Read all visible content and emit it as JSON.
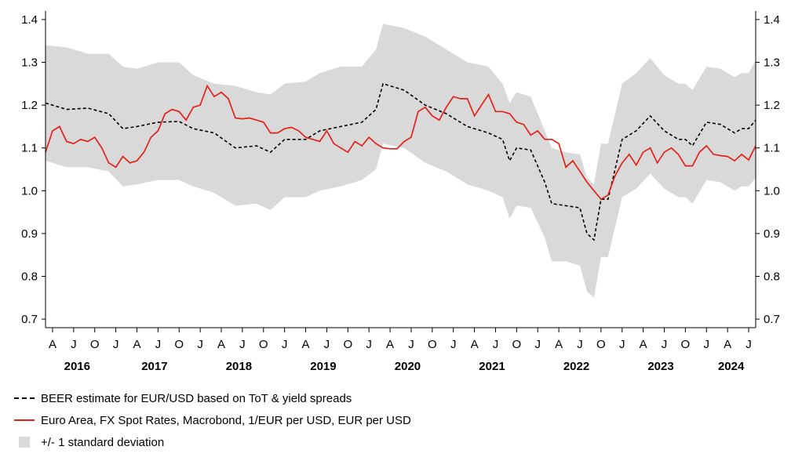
{
  "chart_data": {
    "type": "line",
    "x_axis": {
      "start": "2016-03",
      "end": "2024-08",
      "month_ticks": [
        "A",
        "J",
        "O",
        "J",
        "A",
        "J",
        "O",
        "J",
        "A",
        "J",
        "O",
        "J",
        "A",
        "J",
        "O",
        "J",
        "A",
        "J",
        "O",
        "J",
        "A",
        "J",
        "O",
        "J",
        "A",
        "J",
        "O",
        "J",
        "A",
        "J",
        "O",
        "J",
        "A",
        "J"
      ],
      "year_labels": [
        "2016",
        "2017",
        "2018",
        "2019",
        "2020",
        "2021",
        "2022",
        "2023",
        "2024"
      ]
    },
    "ylim": [
      0.68,
      1.42
    ],
    "y_ticks": [
      0.7,
      0.8,
      0.9,
      1.0,
      1.1,
      1.2,
      1.3,
      1.4
    ],
    "y_tick_labels": [
      "0.7",
      "0.8",
      "0.9",
      "1.0",
      "1.1",
      "1.2",
      "1.3",
      "1.4"
    ],
    "grid": false,
    "legend_position": "bottom",
    "series": [
      {
        "name": "BEER estimate for EUR/USD based on ToT & yield spreads",
        "style": "dashed",
        "color": "#000000",
        "points": [
          [
            "2016-03",
            1.205
          ],
          [
            "2016-06",
            1.19
          ],
          [
            "2016-09",
            1.193
          ],
          [
            "2016-12",
            1.18
          ],
          [
            "2017-02",
            1.145
          ],
          [
            "2017-04",
            1.15
          ],
          [
            "2017-07",
            1.16
          ],
          [
            "2017-10",
            1.162
          ],
          [
            "2017-12",
            1.145
          ],
          [
            "2018-03",
            1.135
          ],
          [
            "2018-06",
            1.1
          ],
          [
            "2018-09",
            1.105
          ],
          [
            "2018-11",
            1.09
          ],
          [
            "2019-01",
            1.12
          ],
          [
            "2019-04",
            1.12
          ],
          [
            "2019-06",
            1.14
          ],
          [
            "2019-09",
            1.15
          ],
          [
            "2019-12",
            1.16
          ],
          [
            "2020-02",
            1.19
          ],
          [
            "2020-03",
            1.25
          ],
          [
            "2020-06",
            1.235
          ],
          [
            "2020-09",
            1.2
          ],
          [
            "2020-12",
            1.18
          ],
          [
            "2021-03",
            1.15
          ],
          [
            "2021-06",
            1.135
          ],
          [
            "2021-08",
            1.12
          ],
          [
            "2021-09",
            1.07
          ],
          [
            "2021-10",
            1.1
          ],
          [
            "2021-12",
            1.095
          ],
          [
            "2022-02",
            1.02
          ],
          [
            "2022-03",
            0.97
          ],
          [
            "2022-05",
            0.965
          ],
          [
            "2022-07",
            0.96
          ],
          [
            "2022-08",
            0.9
          ],
          [
            "2022-09",
            0.885
          ],
          [
            "2022-10",
            0.98
          ],
          [
            "2022-11",
            0.98
          ],
          [
            "2023-01",
            1.12
          ],
          [
            "2023-03",
            1.14
          ],
          [
            "2023-05",
            1.175
          ],
          [
            "2023-07",
            1.14
          ],
          [
            "2023-09",
            1.12
          ],
          [
            "2023-10",
            1.12
          ],
          [
            "2023-11",
            1.105
          ],
          [
            "2024-01",
            1.16
          ],
          [
            "2024-03",
            1.155
          ],
          [
            "2024-05",
            1.135
          ],
          [
            "2024-06",
            1.145
          ],
          [
            "2024-07",
            1.145
          ],
          [
            "2024-08",
            1.165
          ]
        ]
      },
      {
        "name": "Euro Area, FX Spot Rates, Macrobond, 1/EUR per USD, EUR per USD",
        "style": "solid",
        "color": "#e32119",
        "points": [
          [
            "2016-03",
            1.09
          ],
          [
            "2016-04",
            1.14
          ],
          [
            "2016-05",
            1.15
          ],
          [
            "2016-06",
            1.115
          ],
          [
            "2016-07",
            1.11
          ],
          [
            "2016-08",
            1.12
          ],
          [
            "2016-09",
            1.115
          ],
          [
            "2016-10",
            1.125
          ],
          [
            "2016-11",
            1.1
          ],
          [
            "2016-12",
            1.065
          ],
          [
            "2017-01",
            1.055
          ],
          [
            "2017-02",
            1.08
          ],
          [
            "2017-03",
            1.065
          ],
          [
            "2017-04",
            1.07
          ],
          [
            "2017-05",
            1.09
          ],
          [
            "2017-06",
            1.125
          ],
          [
            "2017-07",
            1.14
          ],
          [
            "2017-08",
            1.18
          ],
          [
            "2017-09",
            1.19
          ],
          [
            "2017-10",
            1.185
          ],
          [
            "2017-11",
            1.165
          ],
          [
            "2017-12",
            1.195
          ],
          [
            "2018-01",
            1.2
          ],
          [
            "2018-02",
            1.245
          ],
          [
            "2018-03",
            1.22
          ],
          [
            "2018-04",
            1.23
          ],
          [
            "2018-05",
            1.215
          ],
          [
            "2018-06",
            1.17
          ],
          [
            "2018-07",
            1.168
          ],
          [
            "2018-08",
            1.17
          ],
          [
            "2018-09",
            1.165
          ],
          [
            "2018-10",
            1.16
          ],
          [
            "2018-11",
            1.135
          ],
          [
            "2018-12",
            1.135
          ],
          [
            "2019-01",
            1.145
          ],
          [
            "2019-02",
            1.148
          ],
          [
            "2019-03",
            1.14
          ],
          [
            "2019-04",
            1.125
          ],
          [
            "2019-05",
            1.12
          ],
          [
            "2019-06",
            1.115
          ],
          [
            "2019-07",
            1.14
          ],
          [
            "2019-08",
            1.11
          ],
          [
            "2019-09",
            1.1
          ],
          [
            "2019-10",
            1.09
          ],
          [
            "2019-11",
            1.115
          ],
          [
            "2019-12",
            1.105
          ],
          [
            "2020-01",
            1.125
          ],
          [
            "2020-02",
            1.11
          ],
          [
            "2020-03",
            1.1
          ],
          [
            "2020-04",
            1.098
          ],
          [
            "2020-05",
            1.098
          ],
          [
            "2020-06",
            1.115
          ],
          [
            "2020-07",
            1.125
          ],
          [
            "2020-08",
            1.185
          ],
          [
            "2020-09",
            1.195
          ],
          [
            "2020-10",
            1.175
          ],
          [
            "2020-11",
            1.165
          ],
          [
            "2020-12",
            1.195
          ],
          [
            "2021-01",
            1.22
          ],
          [
            "2021-02",
            1.215
          ],
          [
            "2021-03",
            1.215
          ],
          [
            "2021-04",
            1.175
          ],
          [
            "2021-05",
            1.2
          ],
          [
            "2021-06",
            1.225
          ],
          [
            "2021-07",
            1.185
          ],
          [
            "2021-08",
            1.185
          ],
          [
            "2021-09",
            1.18
          ],
          [
            "2021-10",
            1.16
          ],
          [
            "2021-11",
            1.155
          ],
          [
            "2021-12",
            1.13
          ],
          [
            "2022-01",
            1.14
          ],
          [
            "2022-02",
            1.12
          ],
          [
            "2022-03",
            1.12
          ],
          [
            "2022-04",
            1.11
          ],
          [
            "2022-05",
            1.055
          ],
          [
            "2022-06",
            1.07
          ],
          [
            "2022-07",
            1.045
          ],
          [
            "2022-08",
            1.02
          ],
          [
            "2022-09",
            1.0
          ],
          [
            "2022-10",
            0.98
          ],
          [
            "2022-11",
            0.99
          ],
          [
            "2022-12",
            1.035
          ],
          [
            "2023-01",
            1.065
          ],
          [
            "2023-02",
            1.085
          ],
          [
            "2023-03",
            1.06
          ],
          [
            "2023-04",
            1.09
          ],
          [
            "2023-05",
            1.1
          ],
          [
            "2023-06",
            1.065
          ],
          [
            "2023-07",
            1.09
          ],
          [
            "2023-08",
            1.1
          ],
          [
            "2023-09",
            1.085
          ],
          [
            "2023-10",
            1.058
          ],
          [
            "2023-11",
            1.058
          ],
          [
            "2023-12",
            1.09
          ],
          [
            "2024-01",
            1.105
          ],
          [
            "2024-02",
            1.085
          ],
          [
            "2024-03",
            1.082
          ],
          [
            "2024-04",
            1.08
          ],
          [
            "2024-05",
            1.07
          ],
          [
            "2024-06",
            1.085
          ],
          [
            "2024-07",
            1.072
          ],
          [
            "2024-08",
            1.105
          ]
        ]
      },
      {
        "name": "+/- 1 standard deviation",
        "style": "band",
        "color": "#d9d9d9",
        "upper": [
          [
            "2016-03",
            1.34
          ],
          [
            "2016-06",
            1.335
          ],
          [
            "2016-09",
            1.32
          ],
          [
            "2016-12",
            1.32
          ],
          [
            "2017-02",
            1.29
          ],
          [
            "2017-04",
            1.285
          ],
          [
            "2017-07",
            1.3
          ],
          [
            "2017-10",
            1.3
          ],
          [
            "2017-12",
            1.27
          ],
          [
            "2018-03",
            1.25
          ],
          [
            "2018-06",
            1.245
          ],
          [
            "2018-09",
            1.23
          ],
          [
            "2018-11",
            1.225
          ],
          [
            "2019-01",
            1.25
          ],
          [
            "2019-04",
            1.255
          ],
          [
            "2019-06",
            1.275
          ],
          [
            "2019-09",
            1.29
          ],
          [
            "2019-12",
            1.29
          ],
          [
            "2020-02",
            1.33
          ],
          [
            "2020-03",
            1.39
          ],
          [
            "2020-06",
            1.38
          ],
          [
            "2020-09",
            1.36
          ],
          [
            "2020-12",
            1.33
          ],
          [
            "2021-03",
            1.3
          ],
          [
            "2021-06",
            1.29
          ],
          [
            "2021-08",
            1.25
          ],
          [
            "2021-09",
            1.205
          ],
          [
            "2021-10",
            1.23
          ],
          [
            "2021-12",
            1.22
          ],
          [
            "2022-02",
            1.14
          ],
          [
            "2022-03",
            1.1
          ],
          [
            "2022-05",
            1.09
          ],
          [
            "2022-07",
            1.085
          ],
          [
            "2022-08",
            1.03
          ],
          [
            "2022-09",
            1.015
          ],
          [
            "2022-10",
            1.11
          ],
          [
            "2022-11",
            1.11
          ],
          [
            "2023-01",
            1.25
          ],
          [
            "2023-03",
            1.275
          ],
          [
            "2023-05",
            1.31
          ],
          [
            "2023-07",
            1.27
          ],
          [
            "2023-09",
            1.25
          ],
          [
            "2023-10",
            1.25
          ],
          [
            "2023-11",
            1.235
          ],
          [
            "2024-01",
            1.29
          ],
          [
            "2024-03",
            1.285
          ],
          [
            "2024-05",
            1.265
          ],
          [
            "2024-06",
            1.275
          ],
          [
            "2024-07",
            1.275
          ],
          [
            "2024-08",
            1.305
          ]
        ],
        "lower": [
          [
            "2016-03",
            1.07
          ],
          [
            "2016-06",
            1.055
          ],
          [
            "2016-09",
            1.055
          ],
          [
            "2016-12",
            1.045
          ],
          [
            "2017-02",
            1.01
          ],
          [
            "2017-04",
            1.015
          ],
          [
            "2017-07",
            1.025
          ],
          [
            "2017-10",
            1.025
          ],
          [
            "2017-12",
            1.01
          ],
          [
            "2018-03",
            0.995
          ],
          [
            "2018-06",
            0.965
          ],
          [
            "2018-09",
            0.97
          ],
          [
            "2018-11",
            0.955
          ],
          [
            "2019-01",
            0.985
          ],
          [
            "2019-04",
            0.985
          ],
          [
            "2019-06",
            1.0
          ],
          [
            "2019-09",
            1.01
          ],
          [
            "2019-12",
            1.025
          ],
          [
            "2020-02",
            1.05
          ],
          [
            "2020-03",
            1.11
          ],
          [
            "2020-06",
            1.1
          ],
          [
            "2020-09",
            1.065
          ],
          [
            "2020-12",
            1.045
          ],
          [
            "2021-03",
            1.015
          ],
          [
            "2021-06",
            1.0
          ],
          [
            "2021-08",
            0.985
          ],
          [
            "2021-09",
            0.935
          ],
          [
            "2021-10",
            0.965
          ],
          [
            "2021-12",
            0.96
          ],
          [
            "2022-02",
            0.89
          ],
          [
            "2022-03",
            0.835
          ],
          [
            "2022-05",
            0.835
          ],
          [
            "2022-07",
            0.825
          ],
          [
            "2022-08",
            0.765
          ],
          [
            "2022-09",
            0.75
          ],
          [
            "2022-10",
            0.845
          ],
          [
            "2022-11",
            0.845
          ],
          [
            "2023-01",
            0.985
          ],
          [
            "2023-03",
            1.005
          ],
          [
            "2023-05",
            1.04
          ],
          [
            "2023-07",
            1.005
          ],
          [
            "2023-09",
            0.985
          ],
          [
            "2023-10",
            0.985
          ],
          [
            "2023-11",
            0.97
          ],
          [
            "2024-01",
            1.025
          ],
          [
            "2024-03",
            1.02
          ],
          [
            "2024-05",
            1.0
          ],
          [
            "2024-06",
            1.01
          ],
          [
            "2024-07",
            1.01
          ],
          [
            "2024-08",
            1.03
          ]
        ]
      }
    ]
  },
  "legend": {
    "items": [
      {
        "label": "BEER estimate for EUR/USD based on ToT & yield spreads"
      },
      {
        "label": "Euro Area, FX Spot Rates, Macrobond, 1/EUR per USD, EUR per USD"
      },
      {
        "label": "+/- 1 standard deviation"
      }
    ]
  }
}
